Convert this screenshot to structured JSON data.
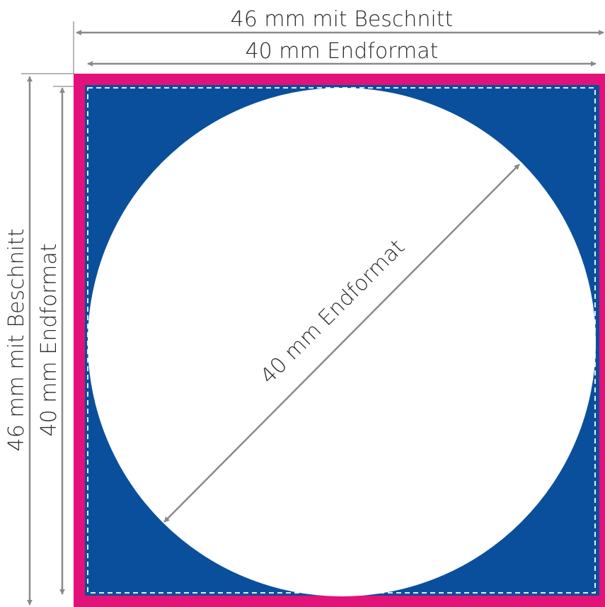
{
  "labels": {
    "top_bleed": "46 mm mit Beschnitt",
    "top_final": "40 mm Endformat",
    "left_bleed": "46 mm mit Beschnitt",
    "left_final": "40 mm Endformat",
    "diagonal_final": "40 mm Endformat"
  },
  "colors": {
    "bleed": "#e2127a",
    "background": "#0a4f9c",
    "circle": "#ffffff",
    "cut_line": "#ffffff",
    "dimension": "#8a8a8a",
    "text": "#2b2b2b"
  }
}
